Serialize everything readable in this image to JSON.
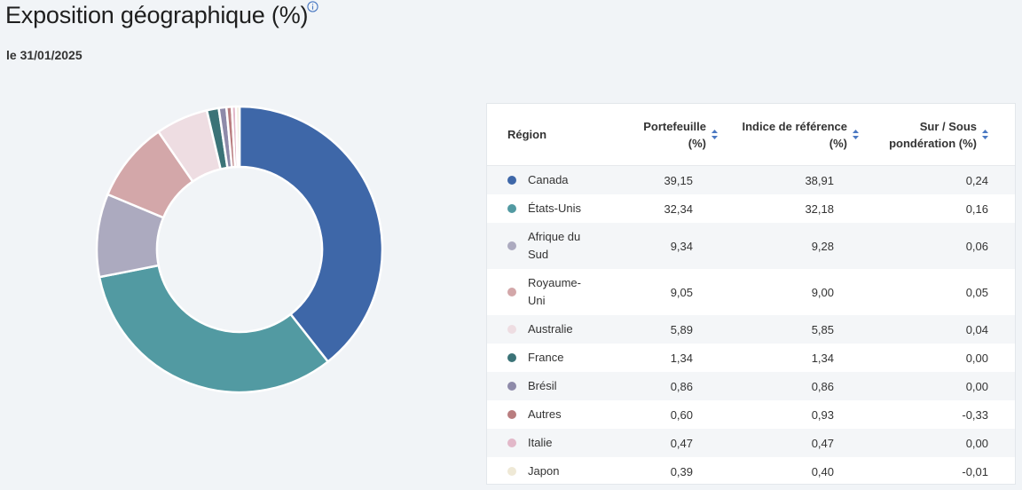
{
  "title": "Exposition géographique (%)",
  "date": "le 31/01/2025",
  "info_icon": "info-circle-icon",
  "table": {
    "headers": {
      "region": "Région",
      "portfolio": [
        "Portefeuille",
        "(%)"
      ],
      "index": [
        "Indice de référence",
        "(%)"
      ],
      "overweight": [
        "Sur / Sous",
        "pondération (%)"
      ]
    },
    "rows": [
      {
        "region": [
          "Canada"
        ],
        "portfolio": "39,15",
        "index": "38,91",
        "over": "0,24",
        "color": "#3e67a8"
      },
      {
        "region": [
          "États-Unis"
        ],
        "portfolio": "32,34",
        "index": "32,18",
        "over": "0,16",
        "color": "#529aa2"
      },
      {
        "region": [
          "Afrique du",
          "Sud"
        ],
        "portfolio": "9,34",
        "index": "9,28",
        "over": "0,06",
        "color": "#acaabf"
      },
      {
        "region": [
          "Royaume-",
          "Uni"
        ],
        "portfolio": "9,05",
        "index": "9,00",
        "over": "0,05",
        "color": "#d3a7a9"
      },
      {
        "region": [
          "Australie"
        ],
        "portfolio": "5,89",
        "index": "5,85",
        "over": "0,04",
        "color": "#eedde2"
      },
      {
        "region": [
          "France"
        ],
        "portfolio": "1,34",
        "index": "1,34",
        "over": "0,00",
        "color": "#3b7377"
      },
      {
        "region": [
          "Brésil"
        ],
        "portfolio": "0,86",
        "index": "0,86",
        "over": "0,00",
        "color": "#8e8aa9"
      },
      {
        "region": [
          "Autres"
        ],
        "portfolio": "0,60",
        "index": "0,93",
        "over": "-0,33",
        "color": "#b97d7f"
      },
      {
        "region": [
          "Italie"
        ],
        "portfolio": "0,47",
        "index": "0,47",
        "over": "0,00",
        "color": "#e2b8c9"
      },
      {
        "region": [
          "Japon"
        ],
        "portfolio": "0,39",
        "index": "0,40",
        "over": "-0,01",
        "color": "#efe9d6"
      }
    ]
  },
  "chart_data": {
    "type": "pie",
    "variant": "donut",
    "categories": [
      "Canada",
      "États-Unis",
      "Afrique du Sud",
      "Royaume-Uni",
      "Australie",
      "France",
      "Brésil",
      "Autres",
      "Italie",
      "Japon"
    ],
    "values": [
      39.15,
      32.34,
      9.34,
      9.05,
      5.89,
      1.34,
      0.86,
      0.6,
      0.47,
      0.39
    ],
    "colors": [
      "#3e67a8",
      "#529aa2",
      "#acaabf",
      "#d3a7a9",
      "#eedde2",
      "#3b7377",
      "#8e8aa9",
      "#b97d7f",
      "#e2b8c9",
      "#efe9d6"
    ]
  },
  "colors": {
    "background": "#f1f4f7",
    "sort_icon": "#4a78c2",
    "info_icon": "#4a78c2"
  }
}
